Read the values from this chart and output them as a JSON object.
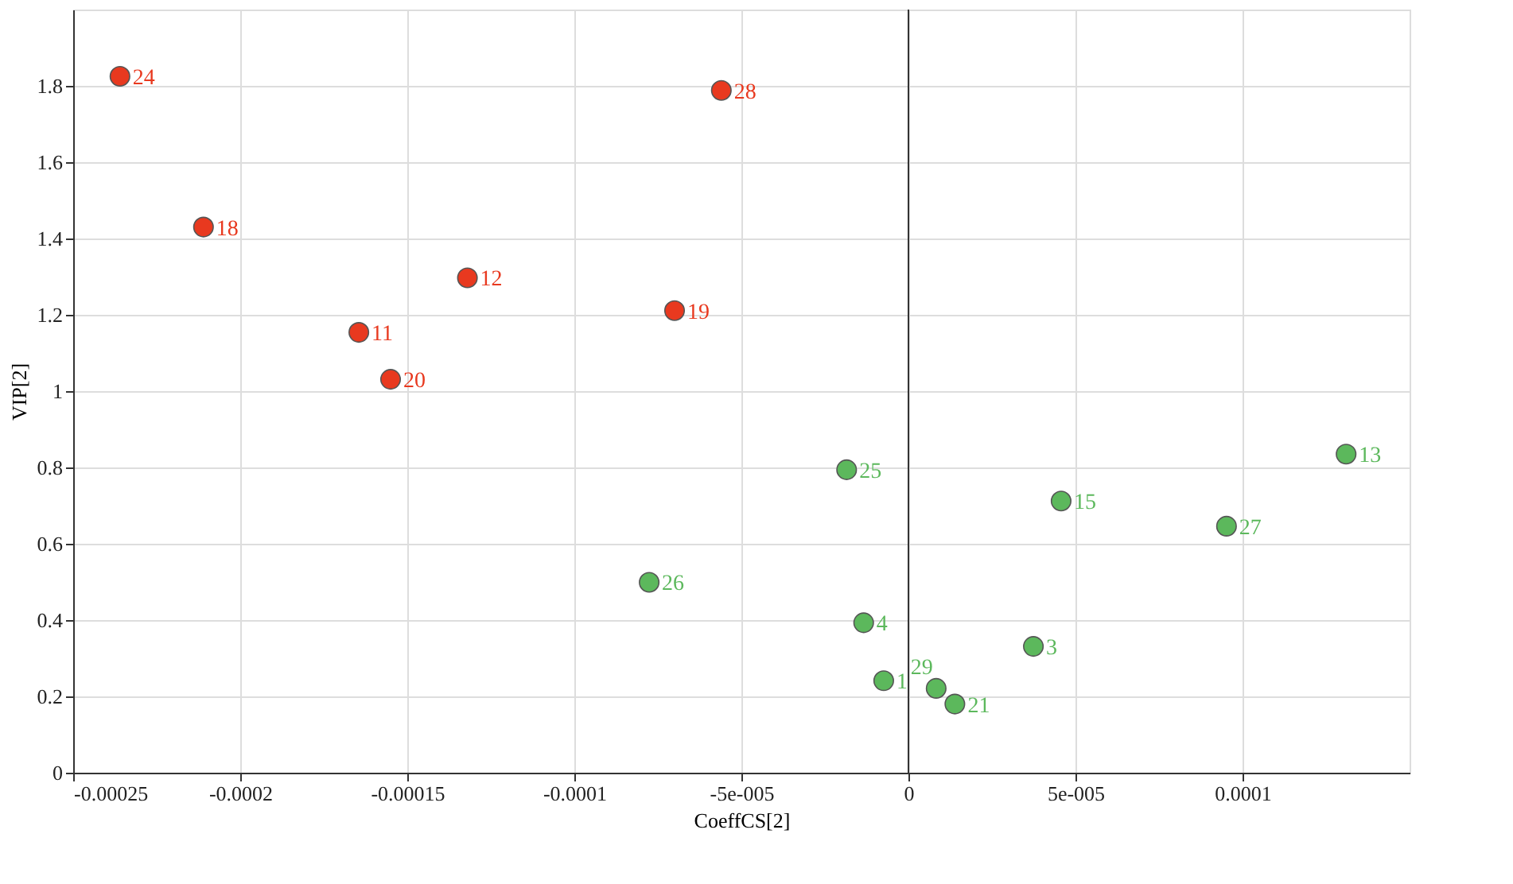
{
  "chart_data": {
    "type": "scatter",
    "xlabel": "CoeffCS[2]",
    "ylabel": "VIP[2]",
    "series": [
      {
        "color": "#e8391f",
        "x": [
          -0.000236,
          -0.000211,
          -0.000132,
          -0.0001645,
          -0.000155,
          -7e-05,
          -5.6e-05
        ],
        "values": [
          1.825,
          1.43,
          1.297,
          1.154,
          1.031,
          1.211,
          1.788
        ]
      },
      {
        "color": "#5cb85c",
        "x": [
          -1.85e-05,
          -7.76e-05,
          0.000131,
          4.57e-05,
          9.52e-05,
          -1.34e-05,
          3.74e-05,
          -7.4e-06,
          8.3e-06,
          1.39e-05
        ],
        "values": [
          0.794,
          0.499,
          0.835,
          0.712,
          0.646,
          0.393,
          0.331,
          0.241,
          0.221,
          0.18
        ]
      }
    ],
    "annotations": [
      {
        "text": "24",
        "x": -0.000236,
        "y": 1.825
      },
      {
        "text": "18",
        "x": -0.000211,
        "y": 1.43
      },
      {
        "text": "12",
        "x": -0.000132,
        "y": 1.297
      },
      {
        "text": "11",
        "x": -0.0001645,
        "y": 1.154
      },
      {
        "text": "20",
        "x": -0.000155,
        "y": 1.031
      },
      {
        "text": "19",
        "x": -7e-05,
        "y": 1.211
      },
      {
        "text": "28",
        "x": -5.6e-05,
        "y": 1.788
      },
      {
        "text": "25",
        "x": -1.85e-05,
        "y": 0.794
      },
      {
        "text": "26",
        "x": -7.76e-05,
        "y": 0.499
      },
      {
        "text": "13",
        "x": 0.000131,
        "y": 0.835
      },
      {
        "text": "15",
        "x": 4.57e-05,
        "y": 0.712
      },
      {
        "text": "27",
        "x": 9.52e-05,
        "y": 0.646
      },
      {
        "text": "4",
        "x": -1.34e-05,
        "y": 0.393
      },
      {
        "text": "3",
        "x": 3.74e-05,
        "y": 0.331
      },
      {
        "text": "1",
        "x": -7.4e-06,
        "y": 0.241
      },
      {
        "text": "29",
        "x": 8.3e-06,
        "y": 0.221
      },
      {
        "text": "21",
        "x": 1.39e-05,
        "y": 0.18
      }
    ],
    "xlim": [
      -0.00025,
      0.00015
    ],
    "xticks": [
      {
        "value": -0.00025,
        "label": "-0.00025"
      },
      {
        "value": -0.0002,
        "label": "-0.0002"
      },
      {
        "value": -0.00015,
        "label": "-0.00015"
      },
      {
        "value": -0.0001,
        "label": "-0.0001"
      },
      {
        "value": -5e-05,
        "label": "-5e-005"
      },
      0,
      {
        "value": 5e-05,
        "label": "5e-005"
      },
      {
        "value": 0.0001,
        "label": "0.0001"
      }
    ],
    "ylim": [
      0,
      2.0
    ],
    "yticks": [
      0,
      0.2,
      0.4,
      0.6,
      0.8,
      1,
      1.2,
      1.4,
      1.6,
      1.8
    ],
    "ref_lines": [
      {
        "axis": "x",
        "value": 0,
        "color": "#333333"
      }
    ],
    "grid": true,
    "marker": "circle"
  }
}
